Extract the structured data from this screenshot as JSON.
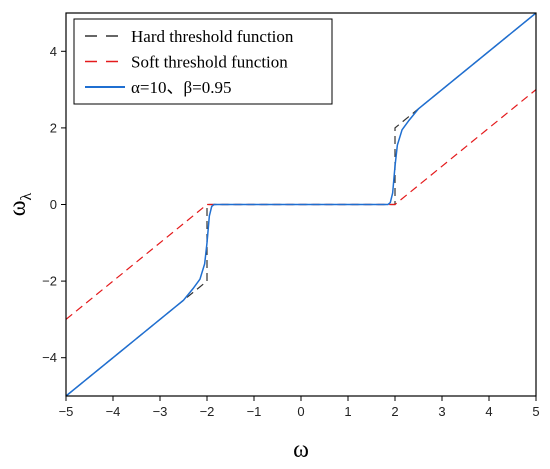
{
  "chart_data": {
    "type": "line",
    "xlabel": "ω",
    "ylabel": "ω",
    "ylabel_sub": "λ",
    "xlim": [
      -5,
      5
    ],
    "ylim": [
      -5,
      5
    ],
    "x_ticks": [
      -5,
      -4,
      -3,
      -2,
      -1,
      0,
      1,
      2,
      3,
      4,
      5
    ],
    "y_ticks": [
      -4,
      -2,
      0,
      2,
      4
    ],
    "x_tick_labels": [
      "−5",
      "−4",
      "−3",
      "−2",
      "−1",
      "0",
      "1",
      "2",
      "3",
      "4",
      "5"
    ],
    "y_tick_labels": [
      "−4",
      "−2",
      "0",
      "2",
      "4"
    ],
    "grid": false,
    "legend_position": "top-left",
    "series": [
      {
        "name": "Hard threshold function",
        "color": "#333333",
        "style": "dashed",
        "x": [
          -5,
          -2,
          -2,
          2,
          2,
          5
        ],
        "y": [
          -5,
          -2,
          0,
          0,
          2,
          5
        ]
      },
      {
        "name": "Soft threshold function",
        "color": "#e41a1c",
        "style": "dashed",
        "x": [
          -5,
          -2,
          2,
          5
        ],
        "y": [
          -3,
          0,
          0,
          3
        ]
      },
      {
        "name": "α=10、β=0.95",
        "color": "#1f6fd1",
        "style": "solid",
        "x": [
          -5,
          -2.5,
          -2.3,
          -2.15,
          -2.05,
          -2.0,
          -1.95,
          -1.9,
          -1.85,
          1.85,
          1.9,
          1.95,
          2.0,
          2.05,
          2.15,
          2.3,
          2.5,
          5
        ],
        "y": [
          -5,
          -2.5,
          -2.2,
          -1.95,
          -1.55,
          -1.0,
          -0.3,
          -0.05,
          0,
          0,
          0.05,
          0.3,
          1.0,
          1.55,
          1.95,
          2.2,
          2.5,
          5
        ]
      }
    ]
  }
}
